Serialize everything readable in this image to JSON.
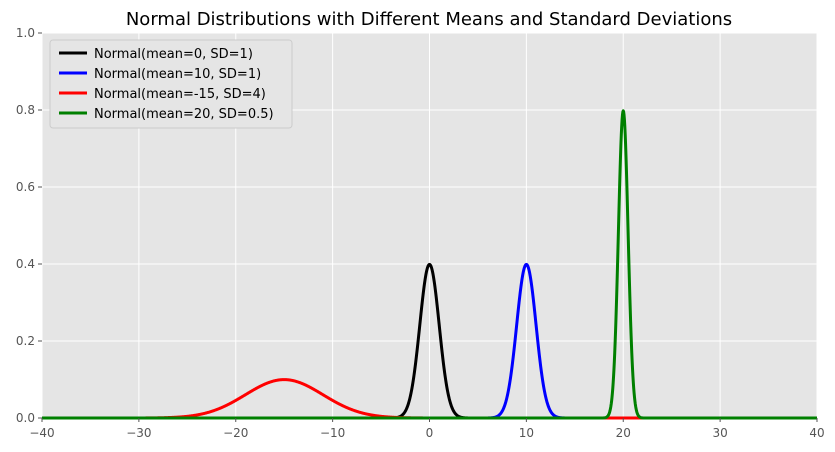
{
  "chart_data": {
    "type": "line",
    "title": "Normal Distributions with Different Means and Standard Deviations",
    "xlabel": "",
    "ylabel": "",
    "xlim": [
      -40,
      40
    ],
    "ylim": [
      0,
      1.0
    ],
    "x_ticks": [
      -40,
      -30,
      -20,
      -10,
      0,
      10,
      20,
      30,
      40
    ],
    "x_tick_labels": [
      "−40",
      "−30",
      "−20",
      "−10",
      "0",
      "10",
      "20",
      "30",
      "40"
    ],
    "y_ticks": [
      0,
      0.2,
      0.4,
      0.6,
      0.8,
      1.0
    ],
    "y_tick_labels": [
      "0.0",
      "0.2",
      "0.4",
      "0.6",
      "0.8",
      "1.0"
    ],
    "grid": true,
    "legend_position": "top-left",
    "series": [
      {
        "name": "Normal(mean=0, SD=1)",
        "mean": 0,
        "sd": 1,
        "color": "#000000"
      },
      {
        "name": "Normal(mean=10, SD=1)",
        "mean": 10,
        "sd": 1,
        "color": "#0000ff"
      },
      {
        "name": "Normal(mean=-15, SD=4)",
        "mean": -15,
        "sd": 4,
        "color": "#ff0000"
      },
      {
        "name": "Normal(mean=20, SD=0.5)",
        "mean": 20,
        "sd": 0.5,
        "color": "#008000"
      }
    ]
  }
}
